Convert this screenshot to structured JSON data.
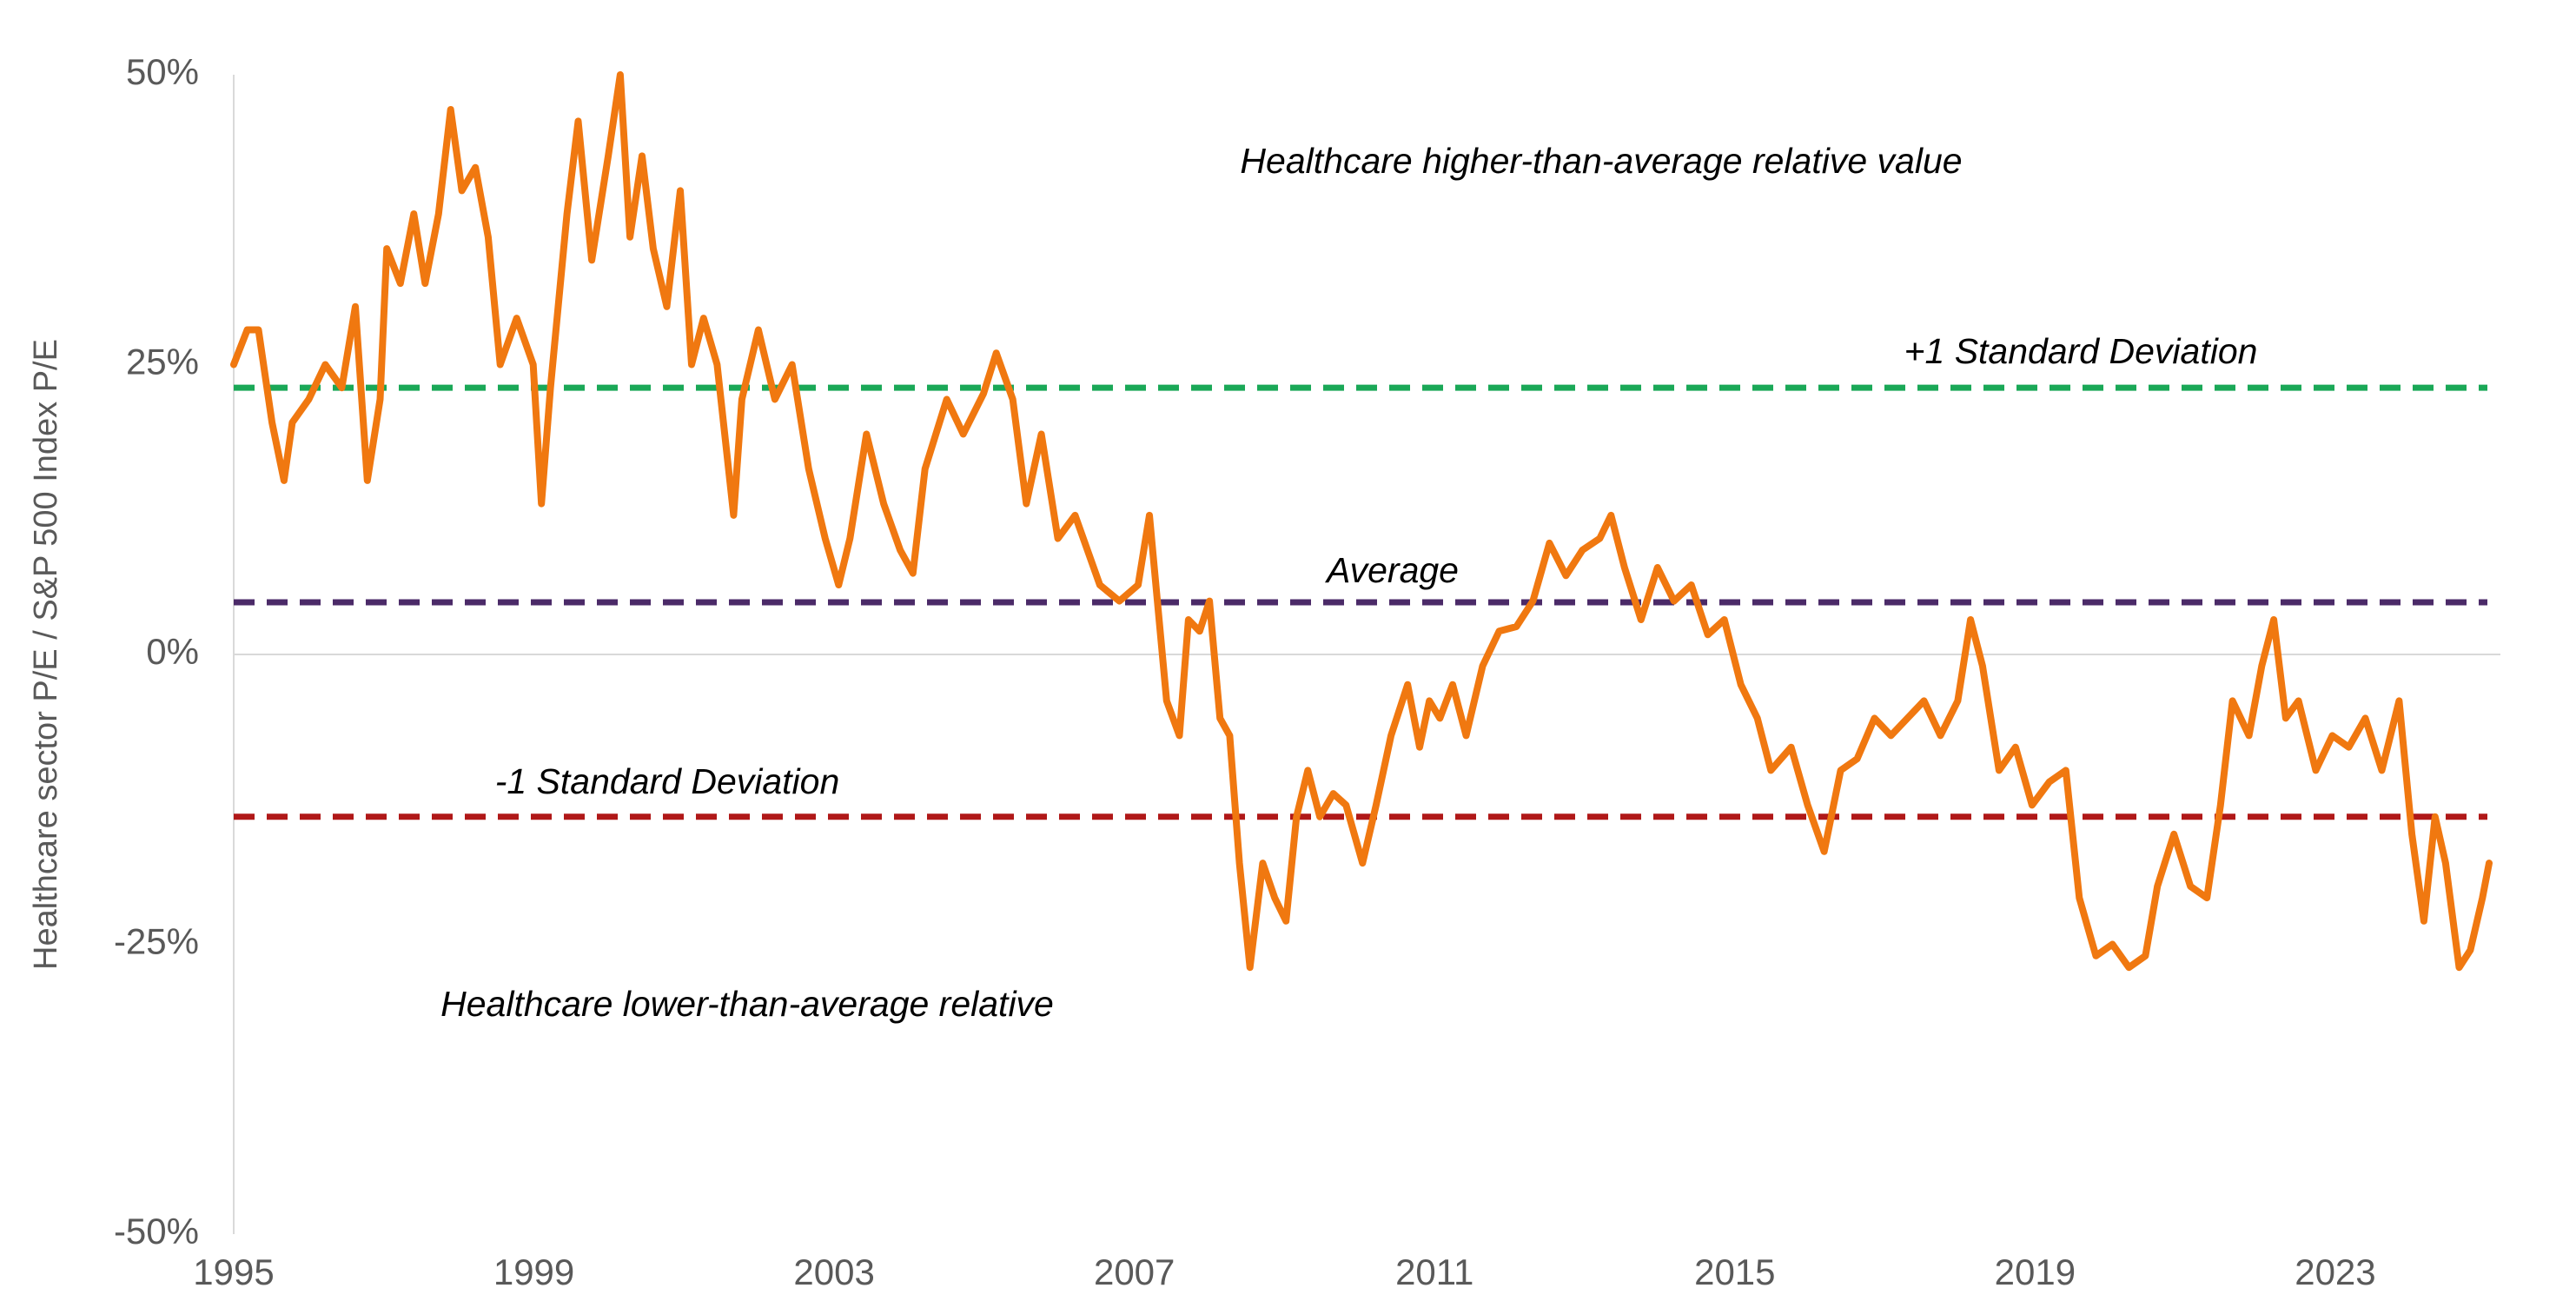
{
  "chart_data": {
    "type": "line",
    "y_axis_label": "Healthcare sector P/E / S&P 500 Index P/E",
    "xlim": [
      1995,
      2025.2
    ],
    "xticks": [
      1995,
      1999,
      2003,
      2007,
      2011,
      2015,
      2019,
      2023
    ],
    "ylim": [
      -50,
      50
    ],
    "yticks": [
      {
        "value": -50,
        "label": "-50%"
      },
      {
        "value": -25,
        "label": "-25%"
      },
      {
        "value": 0,
        "label": "0%"
      },
      {
        "value": 25,
        "label": "25%"
      },
      {
        "value": 50,
        "label": "50%"
      }
    ],
    "grid": false,
    "series": [
      {
        "color": "#f07810",
        "x": [
          1995.0,
          1995.18,
          1995.33,
          1995.51,
          1995.67,
          1995.78,
          1996.0,
          1996.22,
          1996.44,
          1996.62,
          1996.78,
          1996.95,
          1997.04,
          1997.22,
          1997.4,
          1997.55,
          1997.73,
          1997.89,
          1998.04,
          1998.22,
          1998.39,
          1998.55,
          1998.77,
          1998.99,
          1999.1,
          1999.22,
          1999.44,
          1999.59,
          1999.77,
          1999.99,
          2000.15,
          2000.28,
          2000.44,
          2000.59,
          2000.77,
          2000.95,
          2001.1,
          2001.26,
          2001.44,
          2001.66,
          2001.77,
          2001.99,
          2002.21,
          2002.44,
          2002.66,
          2002.88,
          2003.06,
          2003.21,
          2003.43,
          2003.66,
          2003.88,
          2004.05,
          2004.21,
          2004.5,
          2004.72,
          2004.99,
          2005.16,
          2005.38,
          2005.56,
          2005.76,
          2005.98,
          2006.21,
          2006.54,
          2006.8,
          2007.05,
          2007.2,
          2007.43,
          2007.6,
          2007.72,
          2007.87,
          2008.0,
          2008.14,
          2008.27,
          2008.4,
          2008.54,
          2008.71,
          2008.87,
          2009.02,
          2009.16,
          2009.31,
          2009.47,
          2009.65,
          2009.82,
          2010.04,
          2010.22,
          2010.42,
          2010.64,
          2010.8,
          2010.93,
          2011.07,
          2011.24,
          2011.42,
          2011.64,
          2011.86,
          2012.09,
          2012.31,
          2012.53,
          2012.75,
          2012.97,
          2013.2,
          2013.35,
          2013.53,
          2013.75,
          2013.97,
          2014.19,
          2014.42,
          2014.64,
          2014.86,
          2015.08,
          2015.3,
          2015.48,
          2015.75,
          2015.97,
          2016.19,
          2016.41,
          2016.63,
          2016.86,
          2017.08,
          2017.3,
          2017.52,
          2017.74,
          2017.97,
          2018.14,
          2018.3,
          2018.52,
          2018.74,
          2018.96,
          2019.19,
          2019.41,
          2019.59,
          2019.81,
          2020.03,
          2020.25,
          2020.47,
          2020.63,
          2020.85,
          2021.07,
          2021.29,
          2021.47,
          2021.63,
          2021.85,
          2022.02,
          2022.18,
          2022.34,
          2022.51,
          2022.74,
          2022.96,
          2023.18,
          2023.4,
          2023.62,
          2023.85,
          2024.02,
          2024.18,
          2024.33,
          2024.47,
          2024.65,
          2024.8,
          2024.96,
          2025.05
        ],
        "values": [
          25,
          28,
          28,
          20,
          15,
          20,
          22,
          25,
          23,
          30,
          15,
          22,
          35,
          32,
          38,
          32,
          38,
          47,
          40,
          42,
          36,
          25,
          29,
          25,
          13,
          23,
          38,
          46,
          34,
          43,
          50,
          36,
          43,
          35,
          30,
          40,
          25,
          29,
          25,
          12,
          22,
          28,
          22,
          25,
          16,
          10,
          6,
          10,
          19,
          13,
          9,
          7,
          16,
          22,
          19,
          22.5,
          26,
          22,
          13,
          19,
          10,
          12,
          6,
          4.6,
          6,
          12,
          -4,
          -7,
          3,
          2,
          4.6,
          -5.5,
          -7,
          -18,
          -27,
          -18,
          -21,
          -23,
          -14,
          -10,
          -14,
          -12,
          -13,
          -18,
          -13,
          -7,
          -2.6,
          -8,
          -4,
          -5.5,
          -2.6,
          -7,
          -1,
          2,
          2.4,
          4.6,
          9.6,
          6.8,
          9,
          10,
          12,
          7.5,
          3,
          7.5,
          4.6,
          6,
          1.7,
          3,
          -2.6,
          -5.5,
          -10,
          -8,
          -13,
          -17,
          -10,
          -9,
          -5.5,
          -7,
          -5.5,
          -4,
          -7,
          -4,
          3,
          -1,
          -10,
          -8,
          -13,
          -11,
          -10,
          -21,
          -26,
          -25,
          -27,
          -26,
          -20,
          -15.5,
          -20,
          -21,
          -13,
          -4,
          -7,
          -1,
          3,
          -5.5,
          -4,
          -10,
          -7,
          -8,
          -5.5,
          -10,
          -4,
          -15.5,
          -23,
          -14,
          -18,
          -27,
          -25.5,
          -21,
          -18
        ]
      }
    ],
    "reference_lines": [
      {
        "label": "+1 Standard Deviation",
        "value": 23,
        "color": "#1aa857"
      },
      {
        "label": "Average",
        "value": 4.5,
        "color": "#4b2a68"
      },
      {
        "label": "-1 Standard Deviation",
        "value": -14,
        "color": "#b01818"
      }
    ],
    "annotations": [
      "Healthcare higher-than-average relative value",
      "Healthcare lower-than-average relative"
    ]
  }
}
